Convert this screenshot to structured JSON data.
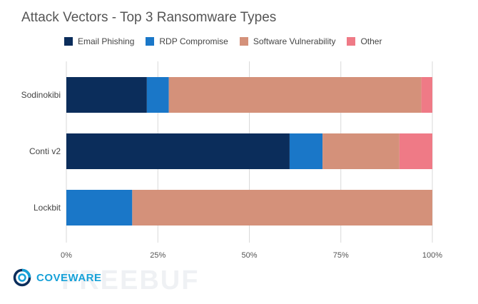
{
  "chart_data": {
    "type": "bar",
    "orientation": "horizontal",
    "stacked": true,
    "title": "Attack Vectors - Top 3 Ransomware Types",
    "categories": [
      "Sodinokibi",
      "Conti v2",
      "Lockbit"
    ],
    "series": [
      {
        "name": "Email Phishing",
        "color": "#0b2d5b",
        "values": [
          22,
          61,
          0
        ]
      },
      {
        "name": "RDP Compromise",
        "color": "#1a77c8",
        "values": [
          6,
          9,
          18
        ]
      },
      {
        "name": "Software Vulnerability",
        "color": "#d4917a",
        "values": [
          69,
          21,
          82
        ]
      },
      {
        "name": "Other",
        "color": "#ef7a86",
        "values": [
          3,
          9,
          0
        ]
      }
    ],
    "xlim": [
      0,
      100
    ],
    "x_ticks": [
      "0%",
      "25%",
      "50%",
      "75%",
      "100%"
    ],
    "grid": true,
    "legend_position": "top"
  },
  "brand": {
    "logo_text": "COVEWARE",
    "watermark_text": "FREEBUF"
  }
}
